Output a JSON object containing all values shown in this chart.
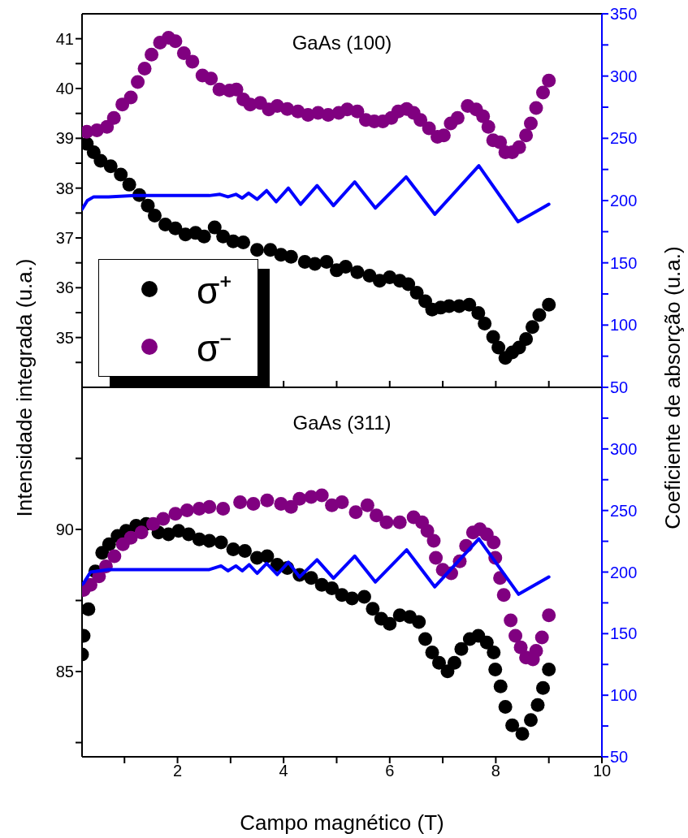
{
  "chart_data": [
    {
      "type": "scatter",
      "title": "GaAs (100)",
      "ylabel": "Intensidade integrada (u.a.)",
      "y2label": "Coeficiente de absorção (u.a.)",
      "legend": "bottom left",
      "tick_labels": "y",
      "xlim": [
        0.2,
        10
      ],
      "xticks": [
        {
          "value": 1,
          "label": null
        },
        2,
        {
          "value": 3,
          "label": null
        },
        4,
        {
          "value": 5,
          "label": null
        },
        6,
        {
          "value": 7,
          "label": null
        },
        8,
        {
          "value": 9,
          "label": null
        },
        10
      ],
      "ylim": [
        34,
        41.5
      ],
      "yticks": [
        {
          "value": 34.5,
          "label": null
        },
        35,
        {
          "value": 35.5,
          "label": null
        },
        36,
        {
          "value": 36.5,
          "label": null
        },
        37,
        {
          "value": 37.5,
          "label": null
        },
        38,
        {
          "value": 38.5,
          "label": null
        },
        39,
        {
          "value": 39.5,
          "label": null
        },
        40,
        {
          "value": 40.5,
          "label": null
        },
        41
      ],
      "y2lim": [
        50,
        350
      ],
      "y2ticks": [
        50,
        {
          "value": 75,
          "label": null
        },
        100,
        {
          "value": 125,
          "label": null
        },
        150,
        {
          "value": 175,
          "label": null
        },
        200,
        {
          "value": 225,
          "label": null
        },
        250,
        {
          "value": 275,
          "label": null
        },
        300,
        {
          "value": 325,
          "label": null
        },
        350
      ],
      "series": [
        {
          "name": "σ⁺",
          "color": "#000000",
          "marker": "circle",
          "x": [
            0.29,
            0.42,
            0.55,
            0.74,
            0.93,
            1.09,
            1.28,
            1.44,
            1.57,
            1.77,
            1.96,
            2.15,
            2.34,
            2.5,
            2.7,
            2.86,
            3.05,
            3.24,
            3.5,
            3.75,
            3.95,
            4.14,
            4.4,
            4.59,
            4.81,
            5.0,
            5.17,
            5.39,
            5.62,
            5.81,
            6.0,
            6.19,
            6.35,
            6.51,
            6.67,
            6.8,
            6.96,
            7.12,
            7.31,
            7.5,
            7.67,
            7.79,
            7.95,
            8.05,
            8.18,
            8.31,
            8.44,
            8.57,
            8.69,
            8.82,
            9.0
          ],
          "values": [
            38.89,
            38.72,
            38.55,
            38.44,
            38.27,
            38.07,
            37.86,
            37.65,
            37.45,
            37.27,
            37.19,
            37.07,
            37.1,
            37.03,
            37.21,
            37.03,
            36.93,
            36.91,
            36.76,
            36.76,
            36.66,
            36.62,
            36.52,
            36.48,
            36.52,
            36.35,
            36.42,
            36.31,
            36.24,
            36.14,
            36.21,
            36.14,
            36.07,
            35.9,
            35.73,
            35.56,
            35.6,
            35.63,
            35.63,
            35.66,
            35.49,
            35.28,
            35.01,
            34.8,
            34.59,
            34.7,
            34.8,
            34.97,
            35.21,
            35.45,
            35.66
          ]
        },
        {
          "name": "σ⁻",
          "color": "#800080",
          "marker": "circle",
          "x": [
            0.29,
            0.48,
            0.67,
            0.8,
            0.96,
            1.12,
            1.25,
            1.38,
            1.51,
            1.67,
            1.83,
            1.96,
            2.12,
            2.28,
            2.47,
            2.63,
            2.79,
            2.98,
            3.11,
            3.24,
            3.37,
            3.56,
            3.72,
            3.88,
            4.07,
            4.27,
            4.46,
            4.65,
            4.84,
            5.04,
            5.2,
            5.39,
            5.55,
            5.71,
            5.87,
            6.03,
            6.16,
            6.32,
            6.45,
            6.58,
            6.74,
            6.9,
            7.02,
            7.15,
            7.28,
            7.47,
            7.63,
            7.76,
            7.86,
            7.95,
            8.08,
            8.18,
            8.31,
            8.44,
            8.57,
            8.66,
            8.76,
            8.89,
            9.0
          ],
          "values": [
            39.13,
            39.16,
            39.23,
            39.41,
            39.68,
            39.82,
            40.13,
            40.4,
            40.68,
            40.92,
            41.02,
            40.95,
            40.71,
            40.54,
            40.26,
            40.2,
            39.98,
            39.96,
            39.98,
            39.78,
            39.68,
            39.71,
            39.58,
            39.65,
            39.59,
            39.54,
            39.47,
            39.51,
            39.47,
            39.51,
            39.58,
            39.54,
            39.37,
            39.34,
            39.34,
            39.41,
            39.54,
            39.59,
            39.51,
            39.37,
            39.2,
            39.03,
            39.06,
            39.3,
            39.41,
            39.65,
            39.58,
            39.44,
            39.23,
            38.96,
            38.92,
            38.72,
            38.72,
            38.82,
            39.06,
            39.3,
            39.61,
            39.92,
            40.16
          ]
        },
        {
          "type": "line",
          "axis": "y2",
          "color": "#0000ff",
          "x": [
            0.2,
            0.3,
            0.42,
            0.7,
            1.2,
            2.0,
            2.6,
            2.8,
            2.95,
            3.1,
            3.22,
            3.34,
            3.5,
            3.68,
            3.86,
            4.09,
            4.32,
            4.63,
            4.94,
            5.34,
            5.73,
            6.31,
            6.85,
            7.68,
            8.42,
            9.0
          ],
          "values": [
            193,
            200,
            203,
            203,
            204,
            204,
            204,
            205,
            203,
            205,
            202,
            206,
            201,
            208,
            199,
            210,
            197,
            212,
            196,
            215,
            194,
            219,
            189,
            228,
            183,
            197
          ]
        }
      ]
    },
    {
      "type": "scatter",
      "title": "GaAs (311)",
      "xlabel": "Campo magnético (T)",
      "xlim": [
        0.2,
        10
      ],
      "xticks": [
        {
          "value": 1,
          "label": null
        },
        2,
        {
          "value": 3,
          "label": null
        },
        4,
        {
          "value": 5,
          "label": null
        },
        6,
        {
          "value": 7,
          "label": null
        },
        8,
        {
          "value": 9,
          "label": null
        },
        10
      ],
      "ylim": [
        82,
        95
      ],
      "yticks": [
        {
          "value": 82.5,
          "label": null
        },
        85,
        {
          "value": 87.5,
          "label": null
        },
        90,
        {
          "value": 92.5,
          "label": null
        }
      ],
      "y2lim": [
        50,
        350
      ],
      "y2ticks": [
        50,
        {
          "value": 75,
          "label": null
        },
        100,
        {
          "value": 125,
          "label": null
        },
        150,
        {
          "value": 175,
          "label": null
        },
        200,
        {
          "value": 225,
          "label": null
        },
        250,
        {
          "value": 275,
          "label": null
        },
        300,
        {
          "value": 325,
          "label": null
        },
        {
          "value": 350,
          "label": null
        }
      ],
      "series": [
        {
          "color": "#000000",
          "marker": "circle",
          "x": [
            0.2,
            0.23,
            0.32,
            0.45,
            0.58,
            0.71,
            0.87,
            1.03,
            1.22,
            1.41,
            1.64,
            1.83,
            2.02,
            2.21,
            2.41,
            2.6,
            2.82,
            3.05,
            3.27,
            3.5,
            3.69,
            3.88,
            4.07,
            4.3,
            4.52,
            4.72,
            4.91,
            5.1,
            5.29,
            5.52,
            5.68,
            5.84,
            6.0,
            6.19,
            6.38,
            6.55,
            6.67,
            6.8,
            6.93,
            7.09,
            7.22,
            7.35,
            7.51,
            7.67,
            7.83,
            7.96,
            7.99,
            8.09,
            8.18,
            8.31,
            8.5,
            8.66,
            8.79,
            8.89,
            9.0
          ],
          "values": [
            85.6,
            86.26,
            87.19,
            88.52,
            89.18,
            89.48,
            89.77,
            89.95,
            90.13,
            90.19,
            89.89,
            89.83,
            89.95,
            89.83,
            89.65,
            89.6,
            89.54,
            89.3,
            89.24,
            89.0,
            89.06,
            88.76,
            88.64,
            88.4,
            88.29,
            88.05,
            87.93,
            87.69,
            87.57,
            87.63,
            87.21,
            86.86,
            86.68,
            86.98,
            86.92,
            86.74,
            86.14,
            85.67,
            85.31,
            85.01,
            85.31,
            85.79,
            86.14,
            86.26,
            86.02,
            85.67,
            85.07,
            84.48,
            83.76,
            83.11,
            82.81,
            83.29,
            83.82,
            84.42,
            85.07
          ]
        },
        {
          "color": "#800080",
          "marker": "circle",
          "x": [
            0.23,
            0.36,
            0.52,
            0.65,
            0.81,
            0.97,
            1.12,
            1.32,
            1.54,
            1.73,
            1.96,
            2.18,
            2.41,
            2.6,
            2.86,
            3.18,
            3.43,
            3.69,
            3.95,
            4.14,
            4.3,
            4.52,
            4.72,
            4.91,
            5.1,
            5.36,
            5.58,
            5.75,
            5.94,
            6.19,
            6.45,
            6.61,
            6.71,
            6.83,
            6.87,
            7.0,
            7.16,
            7.32,
            7.44,
            7.57,
            7.7,
            7.83,
            7.96,
            7.99,
            8.08,
            8.15,
            8.28,
            8.37,
            8.47,
            8.57,
            8.7,
            8.76,
            8.87,
            9.0
          ],
          "values": [
            87.87,
            88.05,
            88.35,
            88.7,
            89.06,
            89.48,
            89.71,
            89.89,
            90.19,
            90.37,
            90.55,
            90.67,
            90.73,
            90.79,
            90.73,
            90.96,
            90.9,
            91.02,
            90.9,
            90.79,
            91.08,
            91.14,
            91.2,
            90.85,
            90.96,
            90.61,
            90.85,
            90.49,
            90.25,
            90.25,
            90.43,
            90.25,
            89.95,
            89.6,
            89.0,
            88.58,
            88.46,
            88.88,
            89.42,
            89.89,
            90.01,
            89.83,
            89.54,
            89.0,
            88.29,
            87.69,
            86.8,
            86.26,
            85.85,
            85.49,
            85.43,
            85.73,
            86.2,
            86.98
          ]
        },
        {
          "type": "line",
          "axis": "y2",
          "color": "#0000ff",
          "x": [
            0.2,
            0.23,
            0.36,
            0.7,
            1.2,
            2.0,
            2.6,
            2.82,
            2.95,
            3.1,
            3.22,
            3.35,
            3.5,
            3.68,
            3.88,
            4.09,
            4.3,
            4.63,
            4.94,
            5.34,
            5.73,
            6.32,
            6.85,
            7.68,
            8.43,
            9.0
          ],
          "values": [
            190,
            191,
            200,
            202,
            202,
            202,
            202,
            205,
            201,
            205,
            201,
            206,
            199,
            207,
            198,
            208,
            196,
            210,
            195,
            213,
            192,
            218,
            188,
            227,
            182,
            196
          ]
        }
      ]
    }
  ]
}
